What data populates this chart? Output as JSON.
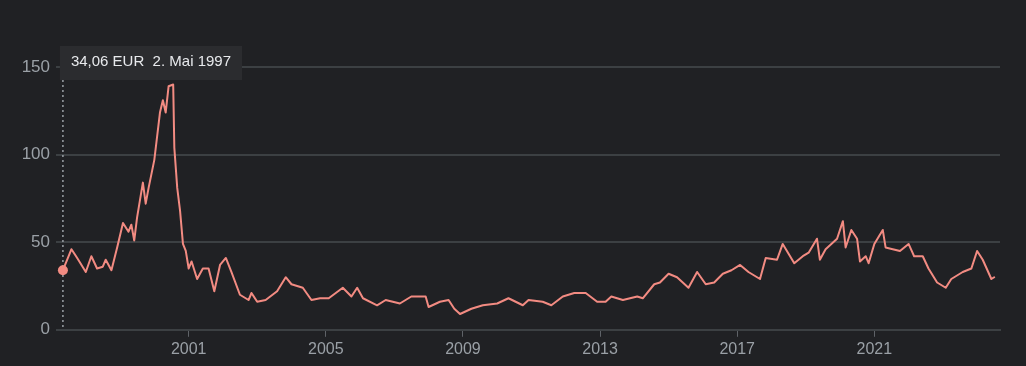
{
  "chart_data": {
    "type": "line",
    "x": [
      "1997-05-02",
      "1997-08",
      "1997-10",
      "1998-01",
      "1998-03",
      "1998-05",
      "1998-07",
      "1998-08",
      "1998-10",
      "1998-12",
      "1999-02",
      "1999-04",
      "1999-05",
      "1999-06",
      "1999-07",
      "1999-09",
      "1999-10",
      "1999-11",
      "2000-01",
      "2000-03",
      "2000-04",
      "2000-05",
      "2000-06",
      "2000-07-20",
      "2000-08",
      "2000-09",
      "2000-10",
      "2000-11",
      "2000-12",
      "2001-01",
      "2001-02",
      "2001-04",
      "2001-06",
      "2001-08",
      "2001-10",
      "2001-12",
      "2002-02",
      "2002-04",
      "2002-07",
      "2002-10",
      "2002-11",
      "2003-01",
      "2003-04",
      "2003-08",
      "2003-11",
      "2004-01",
      "2004-05",
      "2004-08",
      "2004-11",
      "2005-02",
      "2005-07",
      "2005-10",
      "2005-12",
      "2006-02",
      "2006-07",
      "2006-10",
      "2007-03",
      "2007-07",
      "2007-12",
      "2008-01",
      "2008-05",
      "2008-08",
      "2008-10",
      "2008-12",
      "2009-04",
      "2009-08",
      "2010-01",
      "2010-05",
      "2010-10",
      "2010-12",
      "2011-05",
      "2011-08",
      "2011-12",
      "2012-04",
      "2012-08",
      "2012-12",
      "2013-03",
      "2013-05",
      "2013-09",
      "2014-02",
      "2014-04",
      "2014-08",
      "2014-10",
      "2015-01",
      "2015-04",
      "2015-08",
      "2015-11",
      "2016-02",
      "2016-05",
      "2016-08",
      "2016-11",
      "2017-02",
      "2017-05",
      "2017-09",
      "2017-11",
      "2018-03",
      "2018-05",
      "2018-09",
      "2018-12",
      "2019-02",
      "2019-05",
      "2019-06",
      "2019-08",
      "2019-12",
      "2020-02",
      "2020-03",
      "2020-05",
      "2020-07",
      "2020-08",
      "2020-10",
      "2020-11",
      "2021-01",
      "2021-04",
      "2021-05",
      "2021-10",
      "2022-01",
      "2022-03",
      "2022-06",
      "2022-08",
      "2022-11",
      "2023-02",
      "2023-04",
      "2023-08",
      "2023-11",
      "2024-01",
      "2024-03",
      "2024-06",
      "2024-07"
    ],
    "series": [
      {
        "color": "#f28b82",
        "values": [
          34,
          46,
          41,
          33,
          42,
          35,
          36,
          40,
          34,
          47,
          61,
          56,
          60,
          51,
          64,
          84,
          72,
          81,
          97,
          124,
          131,
          124,
          139,
          140,
          104,
          81,
          68,
          49,
          45,
          35,
          39,
          29,
          35,
          35,
          22,
          37,
          41,
          33,
          20,
          17,
          21,
          16,
          17,
          22,
          30,
          26,
          24,
          17,
          18,
          18,
          24,
          19,
          24,
          18,
          14,
          17,
          15,
          19,
          19,
          13,
          16,
          17,
          12,
          9,
          12,
          14,
          15,
          18,
          14,
          17,
          16,
          14,
          19,
          21,
          21,
          16,
          16,
          19,
          17,
          19,
          18,
          26,
          27,
          32,
          30,
          24,
          33,
          26,
          27,
          32,
          34,
          37,
          33,
          29,
          41,
          40,
          49,
          38,
          42,
          44,
          52,
          40,
          46,
          52,
          62,
          47,
          57,
          52,
          39,
          42,
          38,
          49,
          57,
          47,
          45,
          49,
          42,
          42,
          35,
          27,
          24,
          29,
          33,
          35,
          45,
          40,
          29,
          30
        ]
      }
    ],
    "xlim": [
      "1997-04",
      "2024-09"
    ],
    "xticks": [
      "2001",
      "2005",
      "2009",
      "2013",
      "2017",
      "2021"
    ],
    "ylim": [
      0,
      150
    ],
    "yticks": [
      0,
      50,
      100,
      150
    ],
    "grid": "y",
    "legend": false,
    "marker": "none",
    "line_style": "solid",
    "ref_lines": [
      {
        "axis": "x",
        "value": "1997-05-02",
        "color": "#9aa0a6",
        "line_style": "dotted"
      }
    ],
    "annotations": [
      "34,06 EUR  2. Mai 1997"
    ]
  }
}
